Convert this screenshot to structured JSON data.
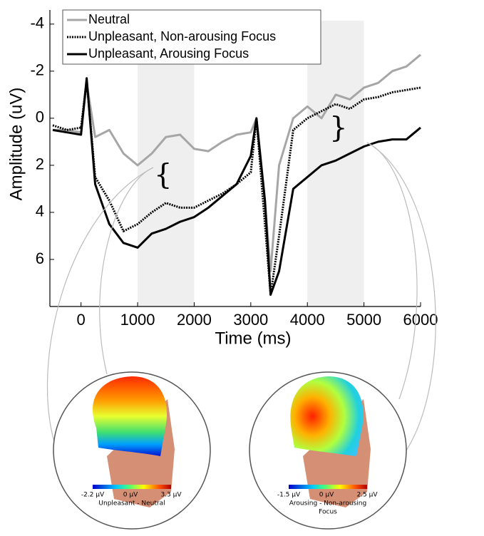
{
  "chart_data": {
    "type": "line",
    "xlabel": "Time (ms)",
    "ylabel": "Amplitude (uV)",
    "x": [
      -500,
      -250,
      0,
      100,
      250,
      500,
      750,
      1000,
      1250,
      1500,
      1750,
      2000,
      2250,
      2500,
      2750,
      3000,
      3100,
      3250,
      3350,
      3500,
      3750,
      4000,
      4250,
      4500,
      4750,
      5000,
      5250,
      5500,
      5750,
      6000
    ],
    "series": [
      {
        "name": "Neutral",
        "color": "#a6a6a6",
        "line_style": "solid",
        "values": [
          0.5,
          0.5,
          0.6,
          -1.5,
          0.8,
          0.5,
          1.5,
          2.0,
          1.5,
          0.8,
          0.7,
          1.3,
          1.4,
          1.0,
          0.7,
          0.6,
          0.0,
          3.5,
          6.5,
          2.0,
          0.0,
          -0.5,
          0.0,
          -1.0,
          -0.8,
          -1.3,
          -1.5,
          -2.0,
          -2.2,
          -2.7
        ]
      },
      {
        "name": "Unpleasant, Non-arousing Focus",
        "color": "#000000",
        "line_style": "dotted",
        "values": [
          0.3,
          0.5,
          0.4,
          -1.6,
          2.5,
          3.5,
          4.8,
          4.5,
          4.0,
          3.6,
          3.8,
          3.8,
          3.5,
          3.2,
          2.8,
          2.3,
          0.0,
          4.5,
          7.5,
          5.0,
          0.5,
          0.0,
          -0.3,
          -0.6,
          -0.4,
          -0.8,
          -0.9,
          -1.1,
          -1.2,
          -1.3
        ]
      },
      {
        "name": "Unpleasant, Arousing Focus",
        "color": "#000000",
        "line_style": "solid",
        "values": [
          0.5,
          0.6,
          0.7,
          -1.7,
          2.8,
          4.5,
          5.3,
          5.5,
          4.9,
          4.7,
          4.4,
          4.2,
          3.8,
          3.3,
          2.8,
          1.6,
          0.0,
          3.5,
          7.5,
          6.5,
          3.0,
          2.5,
          2.0,
          1.8,
          1.5,
          1.2,
          1.0,
          0.9,
          0.9,
          0.4
        ]
      }
    ],
    "xlim": [
      -550,
      6000
    ],
    "xticks": [
      0,
      1000,
      2000,
      3000,
      4000,
      5000,
      6000
    ],
    "ylim": [
      -4.6,
      8
    ],
    "yticks": [
      -4,
      -2,
      0,
      2,
      4,
      6
    ],
    "y_inverted": true,
    "shaded_regions": [
      [
        1000,
        2000
      ],
      [
        4000,
        5000
      ]
    ],
    "annotations": [
      {
        "text": "{",
        "x": 1450,
        "y": 2.5
      },
      {
        "text": "}",
        "x": 4550,
        "y": 0.5
      }
    ],
    "legend": "upper left"
  },
  "topomaps": [
    {
      "min_label": "-2.2 µV",
      "mid_label": "0 µV",
      "max_label": "3.3 µV",
      "caption": [
        "Unpleasant - Neutral"
      ]
    },
    {
      "min_label": "-1.5 µV",
      "mid_label": "0 µV",
      "max_label": "2.5 µV",
      "caption": [
        "Arousing - Non-arousing",
        "Focus"
      ]
    }
  ]
}
